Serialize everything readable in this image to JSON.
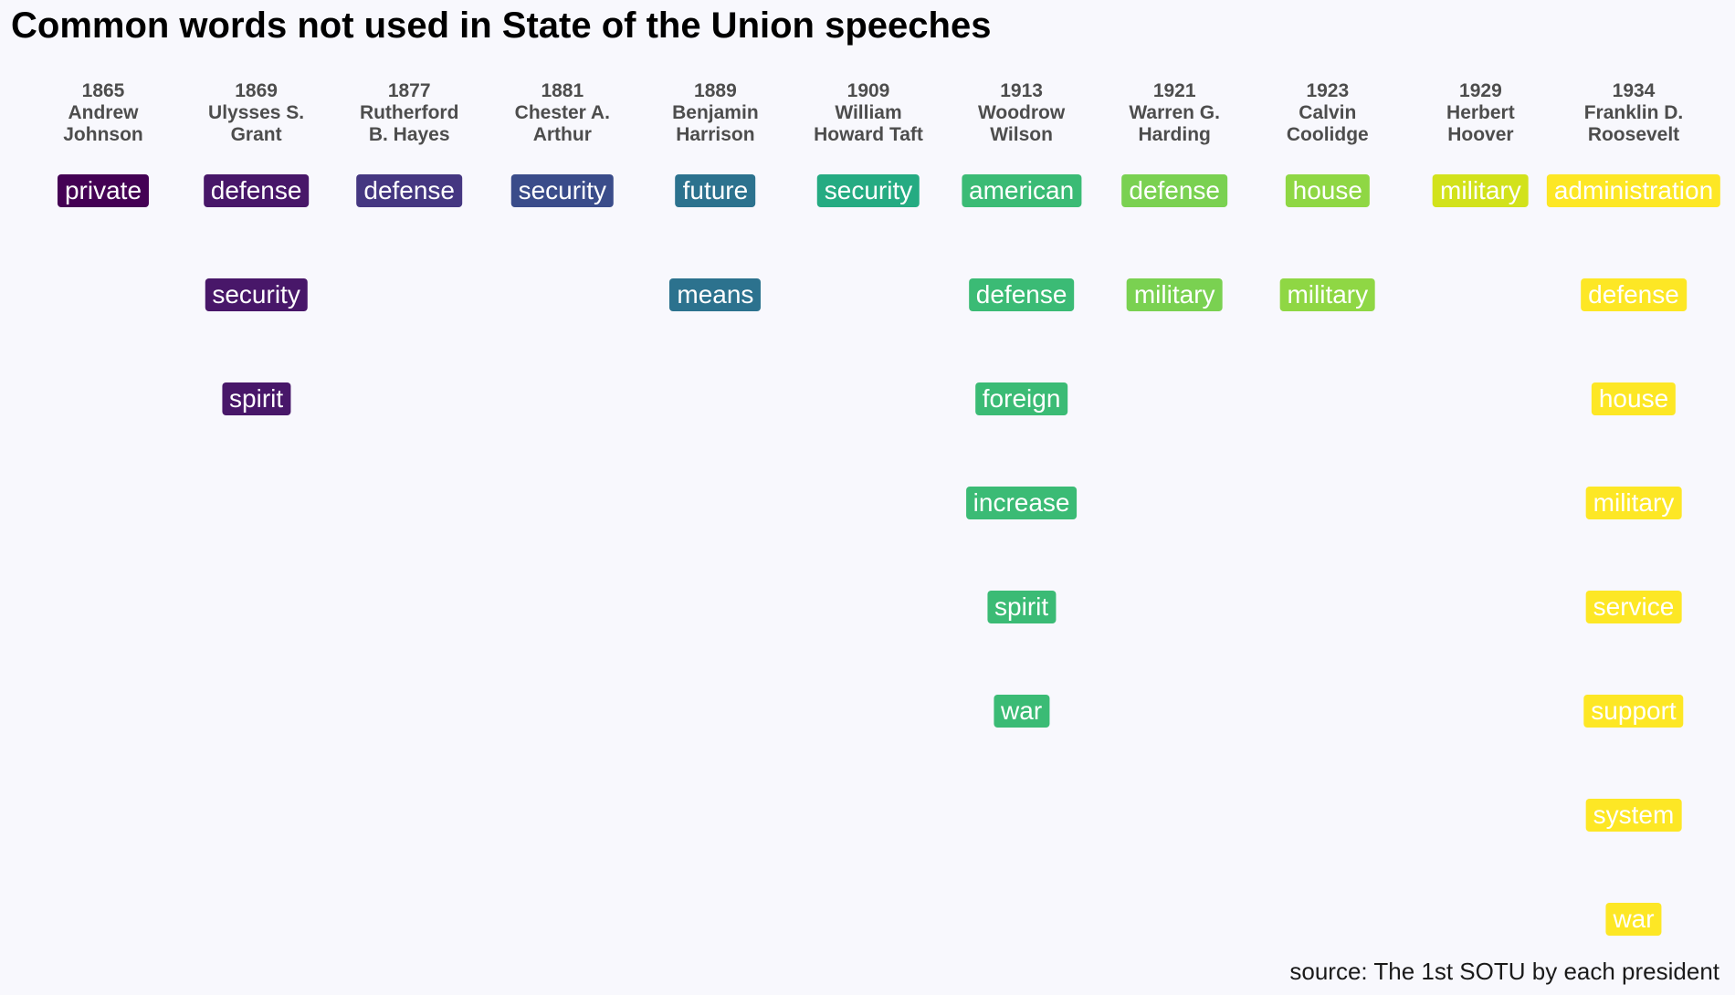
{
  "title": "Common words not used in State of the Union speeches",
  "caption": "source: The 1st SOTU by each president",
  "chart_data": {
    "type": "table",
    "title": "Common words not used in State of the Union speeches",
    "columns": [
      {
        "year": "1865",
        "president": "Andrew Johnson",
        "color": "#440154",
        "words": [
          "private"
        ]
      },
      {
        "year": "1869",
        "president": "Ulysses S. Grant",
        "color": "#481769",
        "words": [
          "defense",
          "security",
          "spirit"
        ]
      },
      {
        "year": "1877",
        "president": "Rutherford B. Hayes",
        "color": "#453781",
        "words": [
          "defense"
        ]
      },
      {
        "year": "1881",
        "president": "Chester A. Arthur",
        "color": "#3a4c8a",
        "words": [
          "security"
        ]
      },
      {
        "year": "1889",
        "president": "Benjamin Harrison",
        "color": "#2c728e",
        "words": [
          "future",
          "means"
        ]
      },
      {
        "year": "1909",
        "president": "William Howard Taft",
        "color": "#25ab82",
        "words": [
          "security"
        ]
      },
      {
        "year": "1913",
        "president": "Woodrow Wilson",
        "color": "#3bbb75",
        "words": [
          "american",
          "defense",
          "foreign",
          "increase",
          "spirit",
          "war"
        ]
      },
      {
        "year": "1921",
        "president": "Warren G. Harding",
        "color": "#7ad151",
        "words": [
          "defense",
          "military"
        ]
      },
      {
        "year": "1923",
        "president": "Calvin Coolidge",
        "color": "#8fd744",
        "words": [
          "house",
          "military"
        ]
      },
      {
        "year": "1929",
        "president": "Herbert Hoover",
        "color": "#d2e21b",
        "words": [
          "military"
        ]
      },
      {
        "year": "1934",
        "president": "Franklin D. Roosevelt",
        "color": "#fde725",
        "words": [
          "administration",
          "defense",
          "house",
          "military",
          "service",
          "support",
          "system",
          "war"
        ]
      }
    ]
  }
}
